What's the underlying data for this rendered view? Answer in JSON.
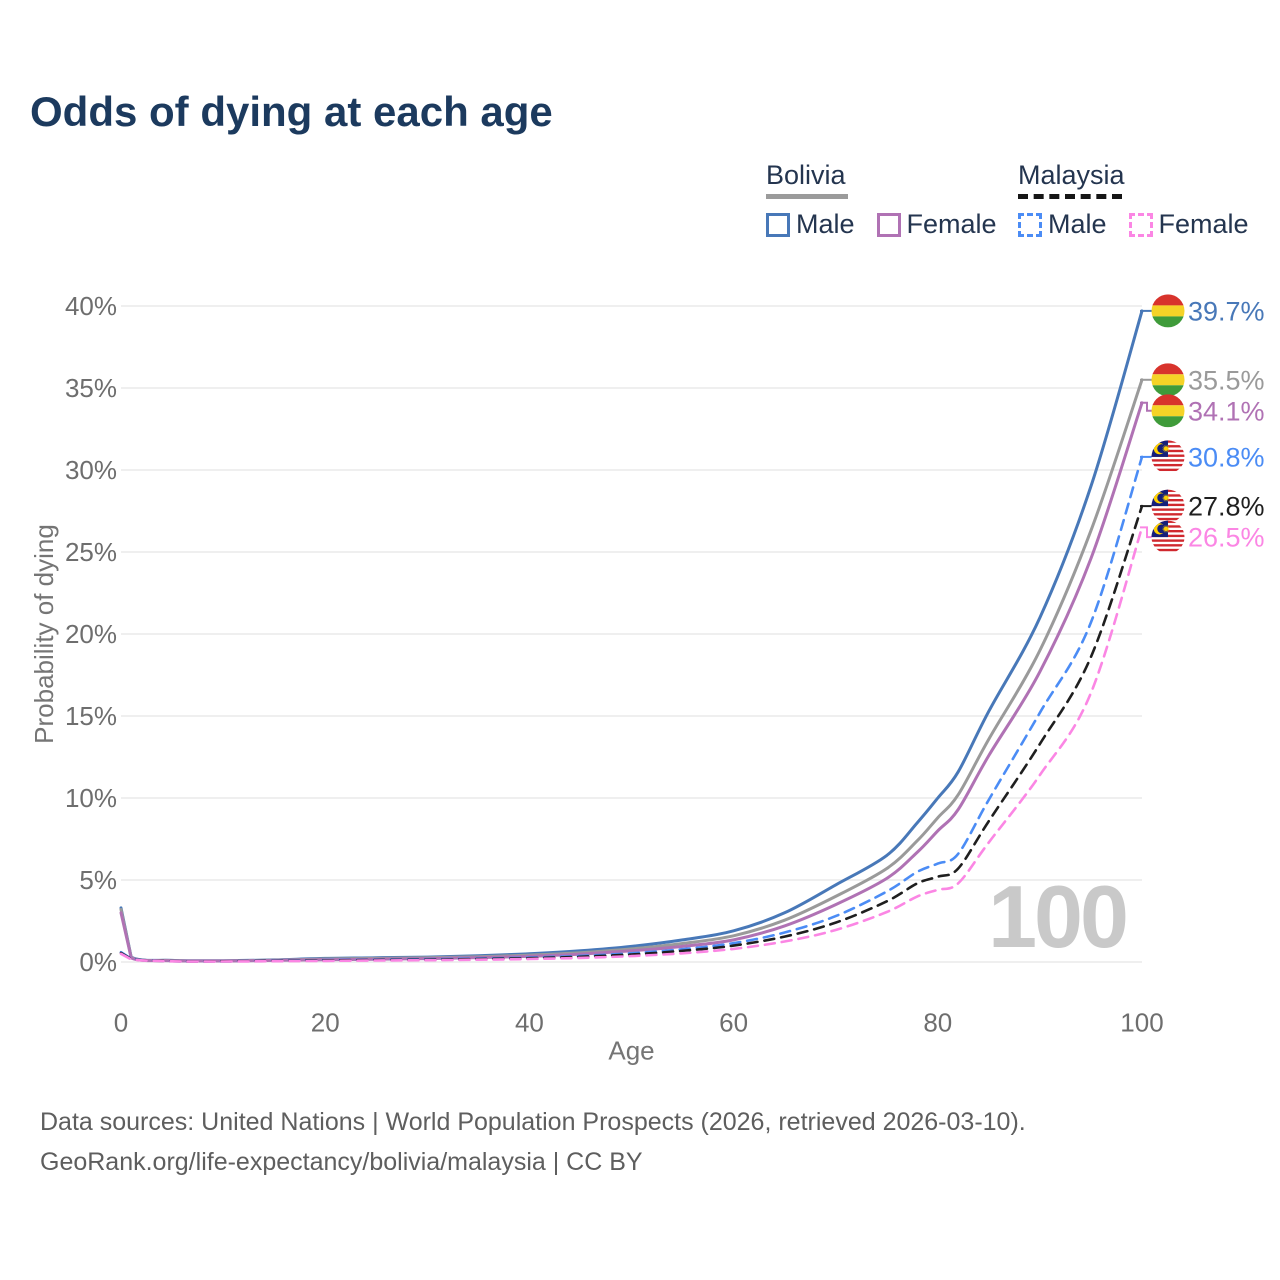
{
  "title": "Odds of dying at each age",
  "legend": {
    "groups": [
      {
        "label": "Bolivia",
        "line_style": "solid",
        "underline_color": "#9b9b9b",
        "items": [
          {
            "label": "Male",
            "color": "#4878b8",
            "dashed": false
          },
          {
            "label": "Female",
            "color": "#b072b4",
            "dashed": false
          }
        ]
      },
      {
        "label": "Malaysia",
        "line_style": "dashed",
        "underline_color": "#161616",
        "items": [
          {
            "label": "Male",
            "color": "#4b8cf5",
            "dashed": true
          },
          {
            "label": "Female",
            "color": "#fb86e4",
            "dashed": true
          }
        ]
      }
    ]
  },
  "chart_data": {
    "type": "line",
    "title": "Odds of dying at each age",
    "xlabel": "Age",
    "ylabel": "Probability of dying",
    "xlim": [
      0,
      100
    ],
    "ylim": [
      0,
      40
    ],
    "grid": "horizontal",
    "legend_position": "top-right",
    "watermark": "100",
    "x_ticks": {
      "values": [
        0,
        20,
        40,
        60,
        80,
        100
      ],
      "labels": [
        "0",
        "20",
        "40",
        "60",
        "80",
        "100"
      ]
    },
    "y_ticks": {
      "values": [
        0,
        5,
        10,
        15,
        20,
        25,
        30,
        35,
        40
      ],
      "labels": [
        "0%",
        "5%",
        "10%",
        "15%",
        "20%",
        "25%",
        "30%",
        "35%",
        "40%"
      ]
    },
    "x": [
      0,
      1,
      5,
      10,
      15,
      20,
      25,
      30,
      35,
      40,
      45,
      50,
      55,
      60,
      65,
      70,
      75,
      78,
      80,
      82,
      85,
      90,
      95,
      100
    ],
    "series": [
      {
        "name": "Bolivia Male",
        "country": "Bolivia",
        "sex": "Male",
        "flag": "bolivia",
        "color": "#4878b8",
        "dashed": false,
        "end_label": "39.7%",
        "values": [
          3.3,
          0.3,
          0.1,
          0.08,
          0.13,
          0.22,
          0.26,
          0.3,
          0.38,
          0.5,
          0.68,
          0.95,
          1.35,
          1.9,
          3.0,
          4.7,
          6.5,
          8.5,
          10.0,
          11.6,
          15.3,
          21.0,
          29.0,
          39.7
        ]
      },
      {
        "name": "Bolivia Both sexes",
        "country": "Bolivia",
        "sex": "Both",
        "flag": "bolivia",
        "color": "#9a9a9a",
        "dashed": false,
        "end_label": "35.5%",
        "values": [
          3.2,
          0.28,
          0.09,
          0.07,
          0.11,
          0.18,
          0.22,
          0.26,
          0.32,
          0.42,
          0.57,
          0.8,
          1.13,
          1.6,
          2.55,
          4.0,
          5.7,
          7.4,
          8.8,
          10.2,
          13.6,
          19.0,
          26.3,
          35.5
        ]
      },
      {
        "name": "Bolivia Female",
        "country": "Bolivia",
        "sex": "Female",
        "flag": "bolivia",
        "color": "#b072b4",
        "dashed": false,
        "end_label": "34.1%",
        "values": [
          3.0,
          0.25,
          0.08,
          0.06,
          0.1,
          0.14,
          0.17,
          0.21,
          0.27,
          0.35,
          0.48,
          0.68,
          0.95,
          1.35,
          2.2,
          3.5,
          5.1,
          6.7,
          8.0,
          9.3,
          12.6,
          17.7,
          24.6,
          34.1
        ]
      },
      {
        "name": "Malaysia Male",
        "country": "Malaysia",
        "sex": "Male",
        "flag": "malaysia",
        "color": "#4b8cf5",
        "dashed": true,
        "end_label": "30.8%",
        "values": [
          0.6,
          0.2,
          0.05,
          0.04,
          0.08,
          0.12,
          0.14,
          0.17,
          0.21,
          0.27,
          0.37,
          0.53,
          0.78,
          1.15,
          1.8,
          2.8,
          4.3,
          5.5,
          6.0,
          6.6,
          9.9,
          15.2,
          20.7,
          30.8
        ]
      },
      {
        "name": "Malaysia Both sexes",
        "country": "Malaysia",
        "sex": "Both",
        "flag": "malaysia",
        "color": "#1f1f1f",
        "dashed": true,
        "end_label": "27.8%",
        "values": [
          0.55,
          0.18,
          0.05,
          0.04,
          0.07,
          0.1,
          0.12,
          0.14,
          0.18,
          0.23,
          0.32,
          0.46,
          0.68,
          1.0,
          1.55,
          2.4,
          3.7,
          4.8,
          5.2,
          5.7,
          8.6,
          13.3,
          18.6,
          27.8
        ]
      },
      {
        "name": "Malaysia Female",
        "country": "Malaysia",
        "sex": "Female",
        "flag": "malaysia",
        "color": "#fb86e4",
        "dashed": true,
        "end_label": "26.5%",
        "values": [
          0.5,
          0.16,
          0.04,
          0.03,
          0.05,
          0.07,
          0.09,
          0.11,
          0.14,
          0.18,
          0.25,
          0.36,
          0.53,
          0.8,
          1.25,
          1.95,
          3.05,
          4.0,
          4.4,
          4.8,
          7.3,
          11.4,
          16.4,
          26.5
        ]
      }
    ],
    "flag_colors": {
      "bolivia": {
        "red": "#d8332c",
        "yellow": "#f5d327",
        "green": "#3f9b3a"
      },
      "malaysia": {
        "red": "#d0282e",
        "white": "#ffffff",
        "blue": "#151f7a",
        "yellow": "#ffd100"
      }
    }
  },
  "footer": {
    "line1": "Data sources: United Nations | World Population Prospects (2026, retrieved 2026-03-10).",
    "line2": "GeoRank.org/life-expectancy/bolivia/malaysia | CC BY"
  }
}
